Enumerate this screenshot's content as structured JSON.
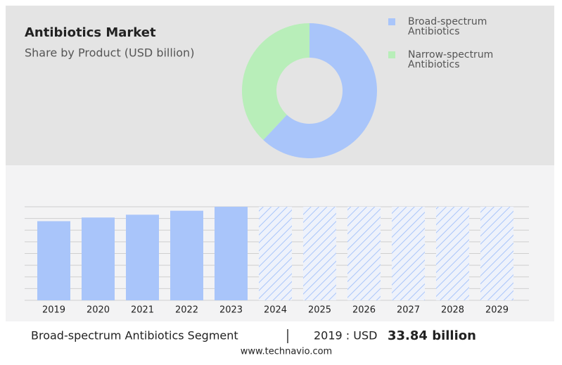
{
  "chart_data": [
    {
      "type": "donut",
      "title": "Antibiotics Market",
      "subtitle": "Share by Product (USD billion)",
      "categories": [
        "Broad-spectrum Antibiotics",
        "Narrow-spectrum Antibiotics"
      ],
      "values": [
        62,
        38
      ],
      "colors": [
        "#a9c5fa",
        "#b8eeb9"
      ]
    },
    {
      "type": "bar",
      "categories": [
        "2019",
        "2020",
        "2021",
        "2022",
        "2023",
        "2024",
        "2025",
        "2026",
        "2027",
        "2028",
        "2029"
      ],
      "values": [
        33.84,
        35.4,
        36.6,
        38.3,
        40,
        null,
        null,
        null,
        null,
        null,
        null
      ],
      "color": "#a9c5fa",
      "ylim": [
        0,
        40
      ],
      "yticks": [
        0,
        5,
        10,
        15,
        20,
        25,
        30,
        35,
        40
      ],
      "grid": true
    }
  ],
  "footer": {
    "segment": "Broad-spectrum Antibiotics Segment",
    "year_label": "2019 : USD",
    "value_label": "33.84 billion",
    "source": "www.technavio.com"
  }
}
